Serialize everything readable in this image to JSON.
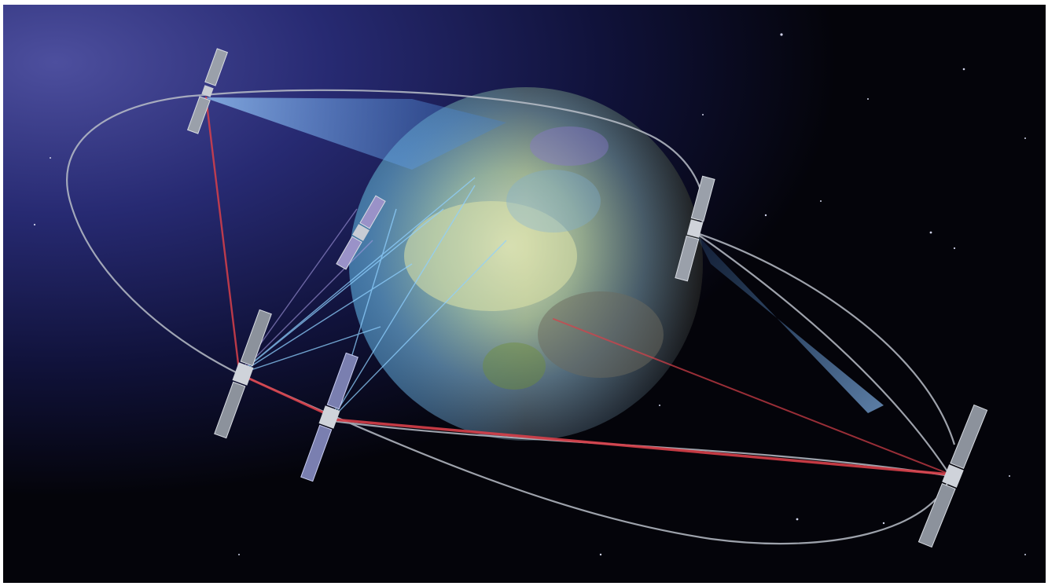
{
  "scene": {
    "subject": "satellite-constellation-around-earth",
    "colors": {
      "space": "#04040a",
      "glow": "#3a3f8f",
      "beam_blue": "#6fb8ff",
      "beam_red": "#d8404a",
      "orbit": "#bfc4cc",
      "earth_light": "#cfd6a0",
      "earth_dark": "#3a3a38"
    },
    "objects": [
      {
        "kind": "satellite",
        "icon": "satellite-icon"
      },
      {
        "kind": "satellite",
        "icon": "satellite-icon"
      },
      {
        "kind": "satellite",
        "icon": "satellite-icon"
      },
      {
        "kind": "satellite",
        "icon": "satellite-icon"
      },
      {
        "kind": "satellite",
        "icon": "satellite-icon"
      },
      {
        "kind": "satellite",
        "icon": "satellite-icon"
      },
      {
        "kind": "planet",
        "icon": "earth-icon"
      }
    ]
  }
}
